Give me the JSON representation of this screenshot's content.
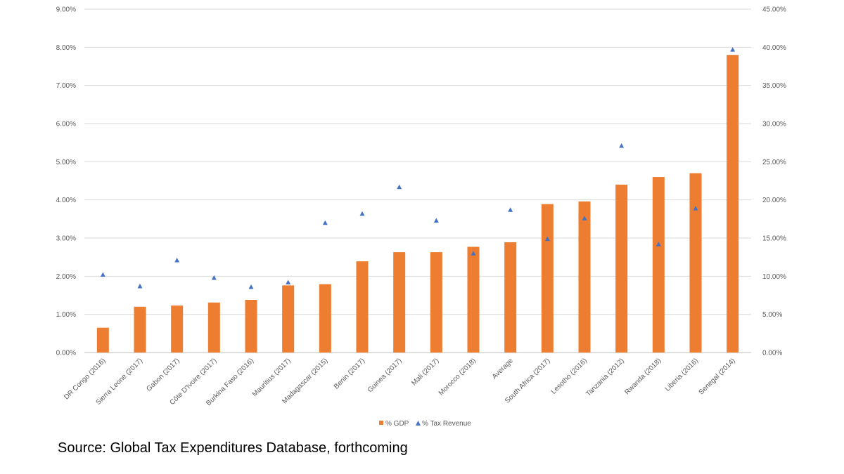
{
  "chart_data": {
    "type": "bar",
    "categories": [
      "DR Congo (2016)",
      "Sierra Leone (2017)",
      "Gabon (2017)",
      "Côte D'Ivoire (2017)",
      "Burkina Faso (2016)",
      "Mauritius (2017)",
      "Madagascar (2015)",
      "Benin (2017)",
      "Guinea (2017)",
      "Mali (2017)",
      "Morocco (2018)",
      "Average",
      "South Africa (2017)",
      "Lesotho (2016)",
      "Tanzania (2012)",
      "Rwanda (2018)",
      "Liberia (2016)",
      "Senegal (2014)"
    ],
    "series": [
      {
        "name": "% GDP",
        "type": "bar",
        "axis": "left",
        "color": "#ED7D31",
        "values": [
          0.65,
          1.2,
          1.23,
          1.31,
          1.38,
          1.76,
          1.79,
          2.39,
          2.63,
          2.63,
          2.77,
          2.89,
          3.89,
          3.96,
          4.4,
          4.6,
          4.7,
          7.8
        ]
      },
      {
        "name": "% Tax Revenue",
        "type": "scatter",
        "marker": "triangle",
        "axis": "right",
        "color": "#4472C4",
        "values": [
          10.2,
          8.7,
          12.1,
          9.8,
          8.6,
          9.2,
          17.0,
          18.2,
          21.7,
          17.3,
          13.0,
          18.7,
          14.9,
          17.6,
          27.1,
          14.2,
          18.9,
          39.7
        ]
      }
    ],
    "y_left": {
      "ylim": [
        0,
        9
      ],
      "ticks": [
        "0.00%",
        "1.00%",
        "2.00%",
        "3.00%",
        "4.00%",
        "5.00%",
        "6.00%",
        "7.00%",
        "8.00%",
        "9.00%"
      ]
    },
    "y_right": {
      "ylim": [
        0,
        45
      ],
      "ticks": [
        "0.00%",
        "5.00%",
        "10.00%",
        "15.00%",
        "20.00%",
        "25.00%",
        "30.00%",
        "35.00%",
        "40.00%",
        "45.00%"
      ]
    },
    "grid": true,
    "legend": "bottom"
  },
  "source_text": "Source: Global Tax Expenditures Database, forthcoming"
}
